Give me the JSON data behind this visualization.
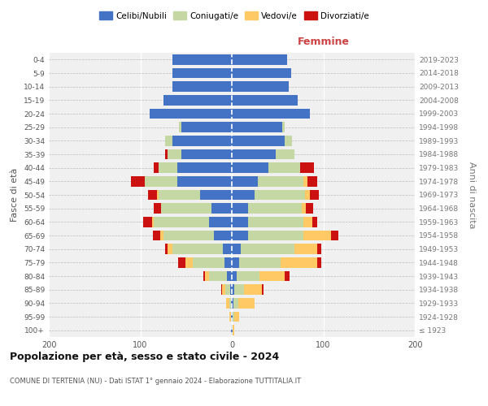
{
  "age_groups": [
    "100+",
    "95-99",
    "90-94",
    "85-89",
    "80-84",
    "75-79",
    "70-74",
    "65-69",
    "60-64",
    "55-59",
    "50-54",
    "45-49",
    "40-44",
    "35-39",
    "30-34",
    "25-29",
    "20-24",
    "15-19",
    "10-14",
    "5-9",
    "0-4"
  ],
  "birth_years": [
    "≤ 1923",
    "1924-1928",
    "1929-1933",
    "1934-1938",
    "1939-1943",
    "1944-1948",
    "1949-1953",
    "1954-1958",
    "1959-1963",
    "1964-1968",
    "1969-1973",
    "1974-1978",
    "1979-1983",
    "1984-1988",
    "1989-1993",
    "1994-1998",
    "1999-2003",
    "2004-2008",
    "2009-2013",
    "2014-2018",
    "2019-2023"
  ],
  "colors": {
    "celibi": "#4472c4",
    "coniugati": "#c5d8a4",
    "vedovi": "#ffc966",
    "divorziati": "#cc1111"
  },
  "males": {
    "celibi": [
      1,
      1,
      1,
      2,
      5,
      8,
      10,
      20,
      25,
      22,
      35,
      60,
      60,
      55,
      65,
      55,
      90,
      75,
      65,
      65,
      65
    ],
    "coniugati": [
      0,
      0,
      2,
      5,
      20,
      35,
      55,
      55,
      60,
      55,
      45,
      35,
      20,
      15,
      8,
      3,
      0,
      0,
      0,
      0,
      0
    ],
    "vedovi": [
      0,
      2,
      3,
      4,
      4,
      8,
      5,
      3,
      2,
      0,
      2,
      0,
      0,
      0,
      0,
      0,
      0,
      0,
      0,
      0,
      0
    ],
    "divorziati": [
      0,
      0,
      0,
      1,
      2,
      8,
      3,
      8,
      10,
      8,
      10,
      15,
      5,
      3,
      0,
      0,
      0,
      0,
      0,
      0,
      0
    ]
  },
  "females": {
    "celibi": [
      1,
      1,
      2,
      3,
      5,
      8,
      10,
      18,
      18,
      18,
      25,
      28,
      40,
      48,
      58,
      55,
      85,
      72,
      62,
      65,
      60
    ],
    "coniugati": [
      0,
      2,
      5,
      10,
      25,
      45,
      58,
      60,
      60,
      58,
      55,
      50,
      35,
      20,
      8,
      3,
      0,
      0,
      0,
      0,
      0
    ],
    "vedovi": [
      2,
      5,
      18,
      20,
      28,
      40,
      25,
      30,
      10,
      5,
      5,
      5,
      0,
      0,
      0,
      0,
      0,
      0,
      0,
      0,
      0
    ],
    "divorziati": [
      0,
      0,
      0,
      2,
      5,
      5,
      5,
      8,
      5,
      8,
      10,
      10,
      15,
      0,
      0,
      0,
      0,
      0,
      0,
      0,
      0
    ]
  },
  "xlim": 200,
  "title": "Popolazione per età, sesso e stato civile - 2024",
  "subtitle": "COMUNE DI TERTENIA (NU) - Dati ISTAT 1° gennaio 2024 - Elaborazione TUTTITALIA.IT",
  "ylabel_left": "Fasce di età",
  "ylabel_right": "Anni di nascita",
  "xlabel_right": "Femmine",
  "legend_labels": [
    "Celibi/Nubili",
    "Coniugati/e",
    "Vedovi/e",
    "Divorziati/e"
  ],
  "bg_color": "#f0f0f0"
}
